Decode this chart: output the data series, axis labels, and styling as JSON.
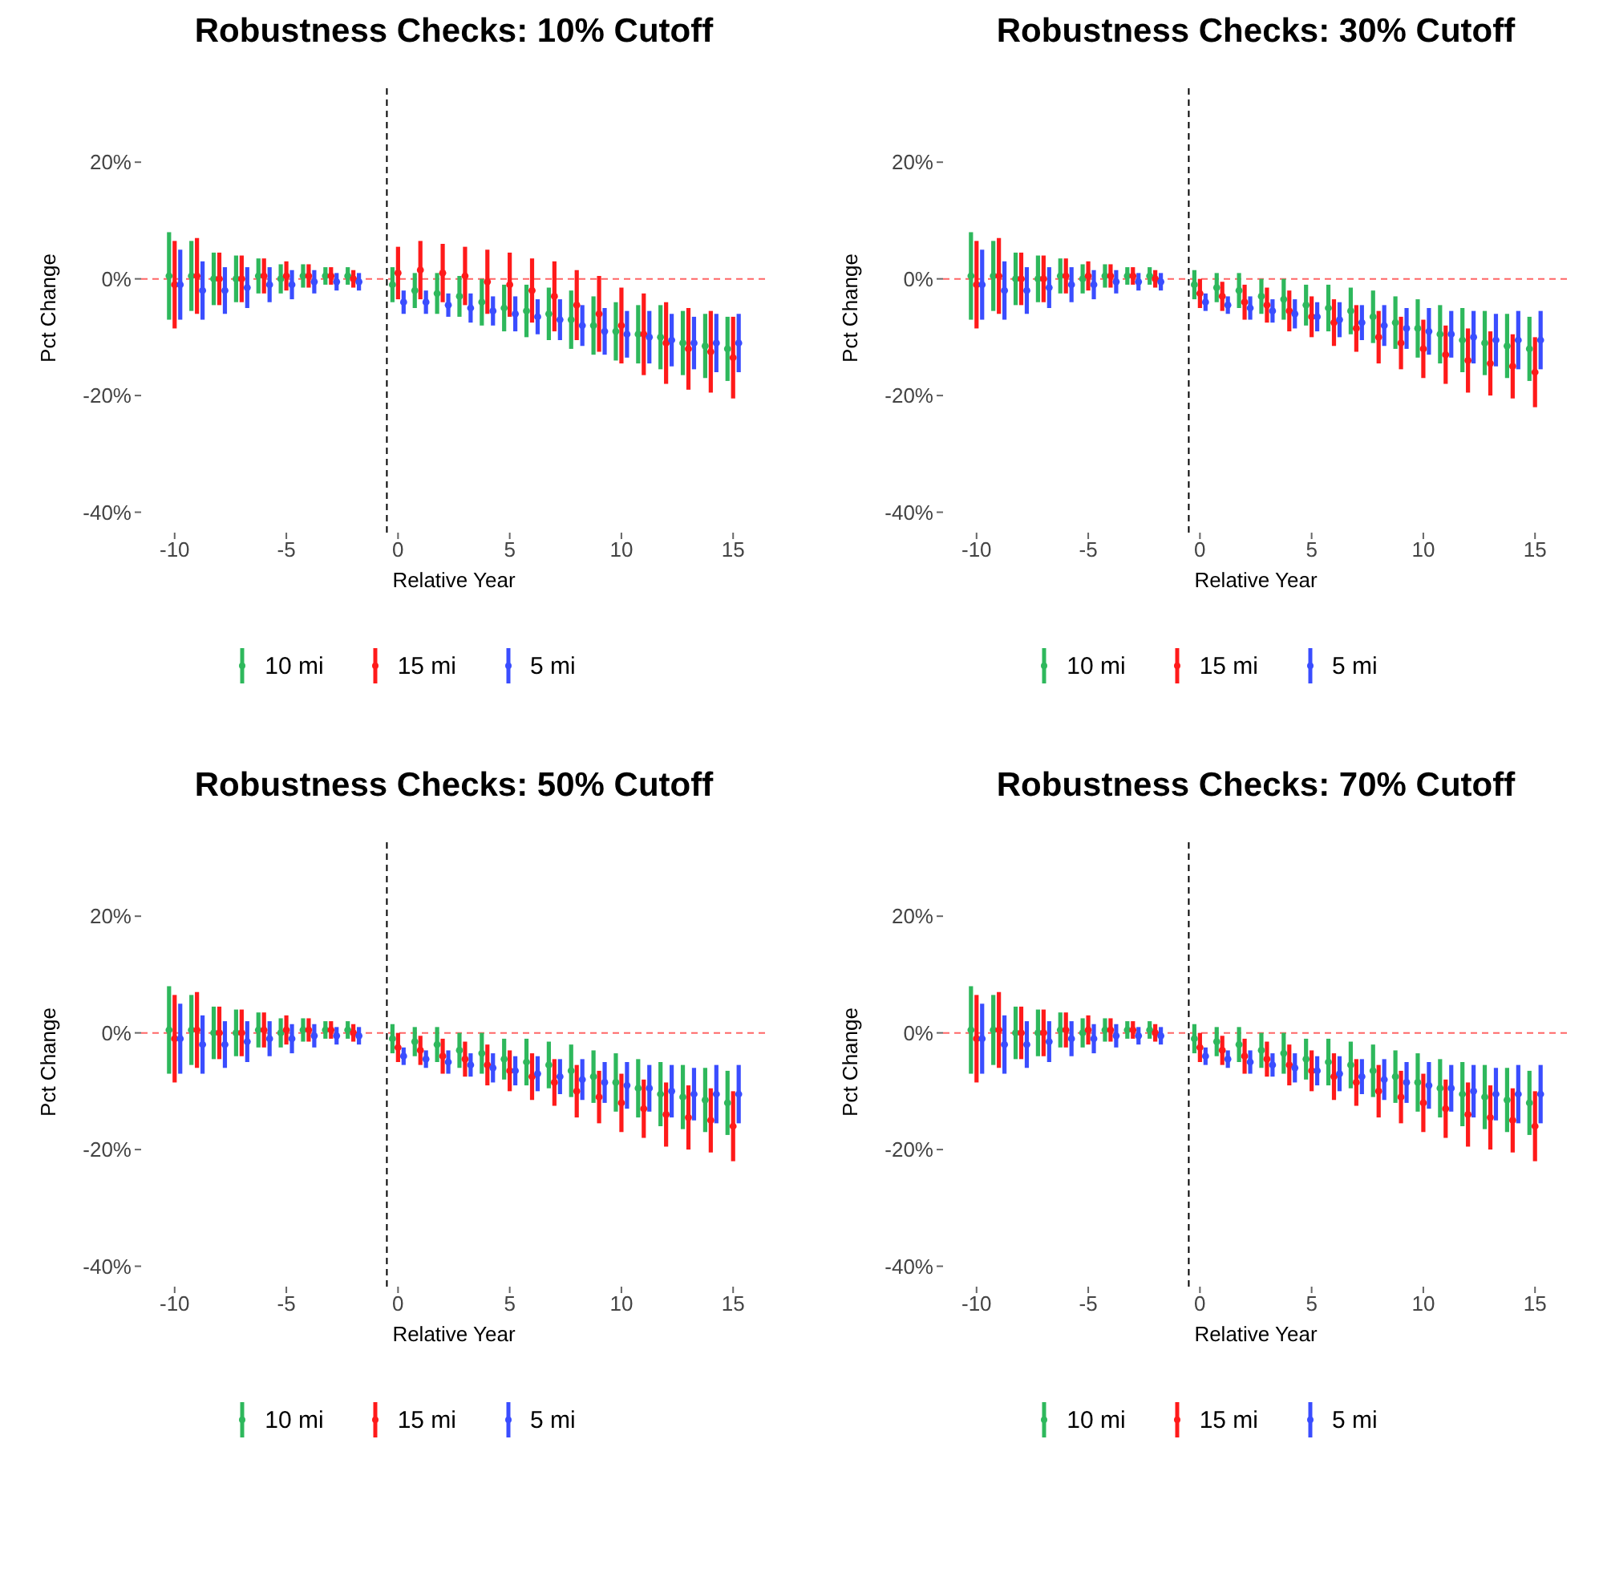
{
  "chart_data": [
    {
      "type": "scatter",
      "title": "Robustness Checks: 10% Cutoff",
      "xlabel": "Relative Year",
      "ylabel": "Pct Change",
      "xlim": [
        -11.5,
        16.5
      ],
      "ylim": [
        -43.5,
        33.5
      ],
      "xticks": [
        -10,
        -5,
        0,
        5,
        10,
        15
      ],
      "yticks": [
        {
          "value": -40,
          "label": "-40%"
        },
        {
          "value": -20,
          "label": "-20%"
        },
        {
          "value": 0,
          "label": "0%"
        },
        {
          "value": 20,
          "label": "20%"
        }
      ],
      "grid": false,
      "legend": "bottom",
      "marker": "circle",
      "ref_lines": [
        {
          "axis": "x",
          "value": -0.5,
          "color": "#000000",
          "line_style": "dashed"
        },
        {
          "axis": "y",
          "value": 0,
          "color": "#ff6666",
          "line_style": "dashed"
        }
      ],
      "series": [
        {
          "name": "10 mi",
          "color": "#2eb85c",
          "x": [
            -10.25,
            -9.25,
            -8.25,
            -7.25,
            -6.25,
            -5.25,
            -4.25,
            -3.25,
            -2.25,
            -0.25,
            0.75,
            1.75,
            2.75,
            3.75,
            4.75,
            5.75,
            6.75,
            7.75,
            8.75,
            9.75,
            10.75,
            11.75,
            12.75,
            13.75,
            14.75
          ],
          "values": [
            0.5,
            0.5,
            0,
            0,
            0.5,
            0,
            0.5,
            0.5,
            0.5,
            -1,
            -2,
            -2.5,
            -3,
            -4,
            -5,
            -5.5,
            -6,
            -7,
            -8,
            -9,
            -9.5,
            -10,
            -11,
            -11.5,
            -12
          ],
          "errors": [
            7.5,
            6,
            4.5,
            4,
            3,
            2.5,
            2,
            1.5,
            1.5,
            3,
            3,
            3.5,
            3.5,
            4,
            4,
            4.5,
            4.5,
            5,
            5,
            5,
            5,
            5.5,
            5.5,
            5.5,
            5.5
          ]
        },
        {
          "name": "15 mi",
          "color": "#ff1a1a",
          "x": [
            -10,
            -9,
            -8,
            -7,
            -6,
            -5,
            -4,
            -3,
            -2,
            0,
            1,
            2,
            3,
            4,
            5,
            6,
            7,
            8,
            9,
            10,
            11,
            12,
            13,
            14,
            15
          ],
          "values": [
            -1,
            0.5,
            0,
            0,
            0.5,
            0.5,
            0.5,
            0.5,
            0,
            1,
            1.5,
            1,
            0.5,
            -0.5,
            -1,
            -2,
            -3,
            -4.5,
            -6,
            -8,
            -9.5,
            -11,
            -12,
            -12.5,
            -13.5
          ],
          "errors": [
            7.5,
            6.5,
            4.5,
            4,
            3,
            2.5,
            2,
            1.5,
            1.5,
            4.5,
            5,
            5,
            5,
            5.5,
            5.5,
            5.5,
            6,
            6,
            6.5,
            6.5,
            7,
            7,
            7,
            7,
            7
          ]
        },
        {
          "name": "5 mi",
          "color": "#3a4dff",
          "x": [
            -9.75,
            -8.75,
            -7.75,
            -6.75,
            -5.75,
            -4.75,
            -3.75,
            -2.75,
            -1.75,
            0.25,
            1.25,
            2.25,
            3.25,
            4.25,
            5.25,
            6.25,
            7.25,
            8.25,
            9.25,
            10.25,
            11.25,
            12.25,
            13.25,
            14.25,
            15.25
          ],
          "values": [
            -1,
            -2,
            -2,
            -1.5,
            -1,
            -1,
            -0.5,
            -0.5,
            -0.5,
            -4,
            -4,
            -4.5,
            -5,
            -5.5,
            -6,
            -6.5,
            -7,
            -8,
            -9,
            -9.5,
            -10,
            -10.5,
            -11,
            -11,
            -11
          ],
          "errors": [
            6,
            5,
            4,
            3.5,
            3,
            2.5,
            2,
            1.5,
            1.5,
            2,
            2,
            2,
            2.5,
            2.5,
            3,
            3,
            3.5,
            3.5,
            4,
            4,
            4.5,
            4.5,
            4.5,
            5,
            5
          ]
        }
      ]
    },
    {
      "type": "scatter",
      "title": "Robustness Checks: 30% Cutoff",
      "xlabel": "Relative Year",
      "ylabel": "Pct Change",
      "xlim": [
        -11.5,
        16.5
      ],
      "ylim": [
        -43.5,
        33.5
      ],
      "xticks": [
        -10,
        -5,
        0,
        5,
        10,
        15
      ],
      "yticks": [
        {
          "value": -40,
          "label": "-40%"
        },
        {
          "value": -20,
          "label": "-20%"
        },
        {
          "value": 0,
          "label": "0%"
        },
        {
          "value": 20,
          "label": "20%"
        }
      ],
      "grid": false,
      "legend": "bottom",
      "marker": "circle",
      "ref_lines": [
        {
          "axis": "x",
          "value": -0.5,
          "color": "#000000",
          "line_style": "dashed"
        },
        {
          "axis": "y",
          "value": 0,
          "color": "#ff6666",
          "line_style": "dashed"
        }
      ],
      "series": [
        {
          "name": "10 mi",
          "color": "#2eb85c",
          "x": [
            -10.25,
            -9.25,
            -8.25,
            -7.25,
            -6.25,
            -5.25,
            -4.25,
            -3.25,
            -2.25,
            -0.25,
            0.75,
            1.75,
            2.75,
            3.75,
            4.75,
            5.75,
            6.75,
            7.75,
            8.75,
            9.75,
            10.75,
            11.75,
            12.75,
            13.75,
            14.75
          ],
          "values": [
            0.5,
            0.5,
            0,
            0,
            0.5,
            0,
            0.5,
            0.5,
            0.5,
            -1,
            -1.5,
            -2,
            -3,
            -3.5,
            -4.5,
            -5,
            -5.5,
            -6.5,
            -7.5,
            -8.5,
            -9.5,
            -10.5,
            -11,
            -11.5,
            -12
          ],
          "errors": [
            7.5,
            6,
            4.5,
            4,
            3,
            2.5,
            2,
            1.5,
            1.5,
            2.5,
            2.5,
            3,
            3,
            3.5,
            3.5,
            4,
            4,
            4.5,
            4.5,
            5,
            5,
            5.5,
            5.5,
            5.5,
            5.5
          ]
        },
        {
          "name": "15 mi",
          "color": "#ff1a1a",
          "x": [
            -10,
            -9,
            -8,
            -7,
            -6,
            -5,
            -4,
            -3,
            -2,
            0,
            1,
            2,
            3,
            4,
            5,
            6,
            7,
            8,
            9,
            10,
            11,
            12,
            13,
            14,
            15
          ],
          "values": [
            -1,
            0.5,
            0,
            0,
            0.5,
            0.5,
            0.5,
            0.5,
            0,
            -2.5,
            -3,
            -4,
            -4.5,
            -5.5,
            -6.5,
            -7.5,
            -8.5,
            -10,
            -11,
            -12,
            -13,
            -14,
            -14.5,
            -15,
            -16
          ],
          "errors": [
            7.5,
            6.5,
            4.5,
            4,
            3,
            2.5,
            2,
            1.5,
            1.5,
            2.5,
            2.5,
            3,
            3,
            3.5,
            3.5,
            4,
            4,
            4.5,
            4.5,
            5,
            5,
            5.5,
            5.5,
            5.5,
            6
          ]
        },
        {
          "name": "5 mi",
          "color": "#3a4dff",
          "x": [
            -9.75,
            -8.75,
            -7.75,
            -6.75,
            -5.75,
            -4.75,
            -3.75,
            -2.75,
            -1.75,
            0.25,
            1.25,
            2.25,
            3.25,
            4.25,
            5.25,
            6.25,
            7.25,
            8.25,
            9.25,
            10.25,
            11.25,
            12.25,
            13.25,
            14.25,
            15.25
          ],
          "values": [
            -1,
            -2,
            -2,
            -1.5,
            -1,
            -1,
            -0.5,
            -0.5,
            -0.5,
            -4,
            -4.5,
            -5,
            -5.5,
            -6,
            -6.5,
            -7,
            -7.5,
            -8,
            -8.5,
            -9,
            -9.5,
            -10,
            -10.5,
            -10.5,
            -10.5
          ],
          "errors": [
            6,
            5,
            4,
            3.5,
            3,
            2.5,
            2,
            1.5,
            1.5,
            1.5,
            1.5,
            2,
            2,
            2.5,
            2.5,
            3,
            3,
            3.5,
            3.5,
            4,
            4,
            4.5,
            4.5,
            5,
            5
          ]
        }
      ]
    },
    {
      "type": "scatter",
      "title": "Robustness Checks: 50% Cutoff",
      "xlabel": "Relative Year",
      "ylabel": "Pct Change",
      "xlim": [
        -11.5,
        16.5
      ],
      "ylim": [
        -43.5,
        33.5
      ],
      "xticks": [
        -10,
        -5,
        0,
        5,
        10,
        15
      ],
      "yticks": [
        {
          "value": -40,
          "label": "-40%"
        },
        {
          "value": -20,
          "label": "-20%"
        },
        {
          "value": 0,
          "label": "0%"
        },
        {
          "value": 20,
          "label": "20%"
        }
      ],
      "grid": false,
      "legend": "bottom",
      "marker": "circle",
      "ref_lines": [
        {
          "axis": "x",
          "value": -0.5,
          "color": "#000000",
          "line_style": "dashed"
        },
        {
          "axis": "y",
          "value": 0,
          "color": "#ff6666",
          "line_style": "dashed"
        }
      ],
      "series": [
        {
          "name": "10 mi",
          "color": "#2eb85c",
          "x": [
            -10.25,
            -9.25,
            -8.25,
            -7.25,
            -6.25,
            -5.25,
            -4.25,
            -3.25,
            -2.25,
            -0.25,
            0.75,
            1.75,
            2.75,
            3.75,
            4.75,
            5.75,
            6.75,
            7.75,
            8.75,
            9.75,
            10.75,
            11.75,
            12.75,
            13.75,
            14.75
          ],
          "values": [
            0.5,
            0.5,
            0,
            0,
            0.5,
            0,
            0.5,
            0.5,
            0.5,
            -1,
            -1.5,
            -2,
            -3,
            -3.5,
            -4.5,
            -5,
            -5.5,
            -6.5,
            -7.5,
            -8.5,
            -9.5,
            -10.5,
            -11,
            -11.5,
            -12
          ],
          "errors": [
            7.5,
            6,
            4.5,
            4,
            3,
            2.5,
            2,
            1.5,
            1.5,
            2.5,
            2.5,
            3,
            3,
            3.5,
            3.5,
            4,
            4,
            4.5,
            4.5,
            5,
            5,
            5.5,
            5.5,
            5.5,
            5.5
          ]
        },
        {
          "name": "15 mi",
          "color": "#ff1a1a",
          "x": [
            -10,
            -9,
            -8,
            -7,
            -6,
            -5,
            -4,
            -3,
            -2,
            0,
            1,
            2,
            3,
            4,
            5,
            6,
            7,
            8,
            9,
            10,
            11,
            12,
            13,
            14,
            15
          ],
          "values": [
            -1,
            0.5,
            0,
            0,
            0.5,
            0.5,
            0.5,
            0.5,
            0,
            -2.5,
            -3,
            -4,
            -4.5,
            -5.5,
            -6.5,
            -7.5,
            -8.5,
            -10,
            -11,
            -12,
            -13,
            -14,
            -14.5,
            -15,
            -16
          ],
          "errors": [
            7.5,
            6.5,
            4.5,
            4,
            3,
            2.5,
            2,
            1.5,
            1.5,
            2.5,
            2.5,
            3,
            3,
            3.5,
            3.5,
            4,
            4,
            4.5,
            4.5,
            5,
            5,
            5.5,
            5.5,
            5.5,
            6
          ]
        },
        {
          "name": "5 mi",
          "color": "#3a4dff",
          "x": [
            -9.75,
            -8.75,
            -7.75,
            -6.75,
            -5.75,
            -4.75,
            -3.75,
            -2.75,
            -1.75,
            0.25,
            1.25,
            2.25,
            3.25,
            4.25,
            5.25,
            6.25,
            7.25,
            8.25,
            9.25,
            10.25,
            11.25,
            12.25,
            13.25,
            14.25,
            15.25
          ],
          "values": [
            -1,
            -2,
            -2,
            -1.5,
            -1,
            -1,
            -0.5,
            -0.5,
            -0.5,
            -4,
            -4.5,
            -5,
            -5.5,
            -6,
            -6.5,
            -7,
            -7.5,
            -8,
            -8.5,
            -9,
            -9.5,
            -10,
            -10.5,
            -10.5,
            -10.5
          ],
          "errors": [
            6,
            5,
            4,
            3.5,
            3,
            2.5,
            2,
            1.5,
            1.5,
            1.5,
            1.5,
            2,
            2,
            2.5,
            2.5,
            3,
            3,
            3.5,
            3.5,
            4,
            4,
            4.5,
            4.5,
            5,
            5
          ]
        }
      ]
    },
    {
      "type": "scatter",
      "title": "Robustness Checks: 70% Cutoff",
      "xlabel": "Relative Year",
      "ylabel": "Pct Change",
      "xlim": [
        -11.5,
        16.5
      ],
      "ylim": [
        -43.5,
        33.5
      ],
      "xticks": [
        -10,
        -5,
        0,
        5,
        10,
        15
      ],
      "yticks": [
        {
          "value": -40,
          "label": "-40%"
        },
        {
          "value": -20,
          "label": "-20%"
        },
        {
          "value": 0,
          "label": "0%"
        },
        {
          "value": 20,
          "label": "20%"
        }
      ],
      "grid": false,
      "legend": "bottom",
      "marker": "circle",
      "ref_lines": [
        {
          "axis": "x",
          "value": -0.5,
          "color": "#000000",
          "line_style": "dashed"
        },
        {
          "axis": "y",
          "value": 0,
          "color": "#ff6666",
          "line_style": "dashed"
        }
      ],
      "series": [
        {
          "name": "10 mi",
          "color": "#2eb85c",
          "x": [
            -10.25,
            -9.25,
            -8.25,
            -7.25,
            -6.25,
            -5.25,
            -4.25,
            -3.25,
            -2.25,
            -0.25,
            0.75,
            1.75,
            2.75,
            3.75,
            4.75,
            5.75,
            6.75,
            7.75,
            8.75,
            9.75,
            10.75,
            11.75,
            12.75,
            13.75,
            14.75
          ],
          "values": [
            0.5,
            0.5,
            0,
            0,
            0.5,
            0,
            0.5,
            0.5,
            0.5,
            -1,
            -1.5,
            -2,
            -3,
            -3.5,
            -4.5,
            -5,
            -5.5,
            -6.5,
            -7.5,
            -8.5,
            -9.5,
            -10.5,
            -11,
            -11.5,
            -12
          ],
          "errors": [
            7.5,
            6,
            4.5,
            4,
            3,
            2.5,
            2,
            1.5,
            1.5,
            2.5,
            2.5,
            3,
            3,
            3.5,
            3.5,
            4,
            4,
            4.5,
            4.5,
            5,
            5,
            5.5,
            5.5,
            5.5,
            5.5
          ]
        },
        {
          "name": "15 mi",
          "color": "#ff1a1a",
          "x": [
            -10,
            -9,
            -8,
            -7,
            -6,
            -5,
            -4,
            -3,
            -2,
            0,
            1,
            2,
            3,
            4,
            5,
            6,
            7,
            8,
            9,
            10,
            11,
            12,
            13,
            14,
            15
          ],
          "values": [
            -1,
            0.5,
            0,
            0,
            0.5,
            0.5,
            0.5,
            0.5,
            0,
            -2.5,
            -3,
            -4,
            -4.5,
            -5.5,
            -6.5,
            -7.5,
            -8.5,
            -10,
            -11,
            -12,
            -13,
            -14,
            -14.5,
            -15,
            -16
          ],
          "errors": [
            7.5,
            6.5,
            4.5,
            4,
            3,
            2.5,
            2,
            1.5,
            1.5,
            2.5,
            2.5,
            3,
            3,
            3.5,
            3.5,
            4,
            4,
            4.5,
            4.5,
            5,
            5,
            5.5,
            5.5,
            5.5,
            6
          ]
        },
        {
          "name": "5 mi",
          "color": "#3a4dff",
          "x": [
            -9.75,
            -8.75,
            -7.75,
            -6.75,
            -5.75,
            -4.75,
            -3.75,
            -2.75,
            -1.75,
            0.25,
            1.25,
            2.25,
            3.25,
            4.25,
            5.25,
            6.25,
            7.25,
            8.25,
            9.25,
            10.25,
            11.25,
            12.25,
            13.25,
            14.25,
            15.25
          ],
          "values": [
            -1,
            -2,
            -2,
            -1.5,
            -1,
            -1,
            -0.5,
            -0.5,
            -0.5,
            -4,
            -4.5,
            -5,
            -5.5,
            -6,
            -6.5,
            -7,
            -7.5,
            -8,
            -8.5,
            -9,
            -9.5,
            -10,
            -10.5,
            -10.5,
            -10.5
          ],
          "errors": [
            6,
            5,
            4,
            3.5,
            3,
            2.5,
            2,
            1.5,
            1.5,
            1.5,
            1.5,
            2,
            2,
            2.5,
            2.5,
            3,
            3,
            3.5,
            3.5,
            4,
            4,
            4.5,
            4.5,
            5,
            5
          ]
        }
      ]
    }
  ]
}
